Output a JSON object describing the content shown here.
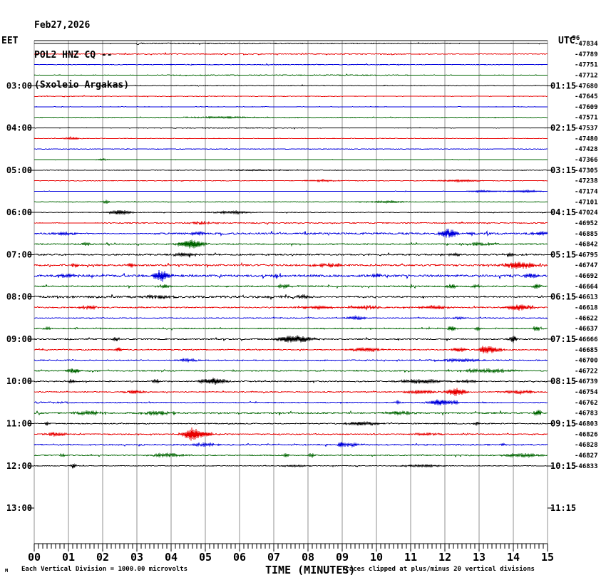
{
  "header": {
    "date": "Feb27,2026",
    "station": "POL2 HNZ CQ --",
    "location": "(Sxoleio Argakas)"
  },
  "left_axis_label": "EET",
  "right_axis_label": "UTC",
  "right_column_overlap_value": "-96",
  "footer": {
    "mark": "M",
    "scale_note": "Each Vertical Division = 1000.00 microvolts",
    "axis_title": "TIME (MINUTES)",
    "clip_note": "Traces clipped at plus/minus 20 vertical divisions"
  },
  "chart_data": {
    "type": "line",
    "subtype": "seismogram-helicorder",
    "title": "POL2 HNZ CQ --",
    "xlabel": "TIME (MINUTES)",
    "x_range": [
      0,
      15
    ],
    "x_tick_labels": [
      "00",
      "01",
      "02",
      "03",
      "04",
      "05",
      "06",
      "07",
      "08",
      "09",
      "10",
      "11",
      "12",
      "13",
      "14",
      "15"
    ],
    "minor_divisions_per_minute": 8,
    "grid": true,
    "grid_color": "#909090",
    "colors_cycle": [
      "#000000",
      "#e80000",
      "#0000dd",
      "#006600"
    ],
    "hour_rows": [
      {
        "row": 5,
        "eet": "03:00",
        "utc": "01:15"
      },
      {
        "row": 9,
        "eet": "04:00",
        "utc": "02:15"
      },
      {
        "row": 13,
        "eet": "05:00",
        "utc": "03:15"
      },
      {
        "row": 17,
        "eet": "06:00",
        "utc": "04:15"
      },
      {
        "row": 21,
        "eet": "07:00",
        "utc": "05:15"
      },
      {
        "row": 25,
        "eet": "08:00",
        "utc": "06:15"
      },
      {
        "row": 29,
        "eet": "09:00",
        "utc": "07:15"
      },
      {
        "row": 33,
        "eet": "10:00",
        "utc": "08:15"
      },
      {
        "row": 37,
        "eet": "11:00",
        "utc": "09:15"
      },
      {
        "row": 41,
        "eet": "12:00",
        "utc": "10:15"
      },
      {
        "row": 45,
        "eet": "13:00",
        "utc": "11:15"
      }
    ],
    "right_values": [
      "-47834",
      "-47789",
      "-47751",
      "-47712",
      "-47680",
      "-47645",
      "-47609",
      "-47571",
      "-47537",
      "-47480",
      "-47428",
      "-47366",
      "-47305",
      "-47238",
      "-47174",
      "-47101",
      "-47024",
      "-46952",
      "-46885",
      "-46842",
      "-46795",
      "-46747",
      "-46692",
      "-46664",
      "-46613",
      "-46618",
      "-46622",
      "-46637",
      "-46666",
      "-46685",
      "-46700",
      "-46722",
      "-46739",
      "-46754",
      "-46762",
      "-46783",
      "-46803",
      "-46826",
      "-46828",
      "-46827",
      "-46833"
    ],
    "traces": [
      {
        "row": 1,
        "p": [
          [
            0,
            3,
            0.25
          ],
          [
            3,
            7.5,
            0.8
          ],
          [
            7.5,
            12.5,
            0.45
          ],
          [
            12.5,
            15,
            0.3
          ]
        ],
        "e": []
      },
      {
        "row": 2,
        "p": [
          [
            0,
            2.5,
            0.3
          ],
          [
            2.5,
            11,
            0.55
          ],
          [
            11,
            15,
            0.3
          ]
        ],
        "e": []
      },
      {
        "row": 3,
        "p": [
          [
            0,
            4,
            0.25
          ],
          [
            4,
            11,
            0.45
          ],
          [
            11,
            15,
            0.25
          ]
        ],
        "e": []
      },
      {
        "row": 4,
        "p": [
          [
            0,
            4,
            0.3
          ],
          [
            4,
            11,
            0.5
          ],
          [
            11,
            15,
            0.3
          ]
        ],
        "e": []
      },
      {
        "row": 5,
        "p": [
          [
            0,
            4,
            0.25
          ],
          [
            4,
            9,
            0.5
          ],
          [
            9,
            15,
            0.3
          ]
        ],
        "e": []
      },
      {
        "row": 6,
        "p": [
          [
            0,
            9,
            0.35
          ],
          [
            9,
            15,
            0.25
          ]
        ],
        "e": []
      },
      {
        "row": 7,
        "p": [
          [
            0,
            15,
            0.25
          ]
        ],
        "e": []
      },
      {
        "row": 8,
        "p": [
          [
            0,
            15,
            0.3
          ]
        ],
        "e": [
          [
            5.5,
            1.2,
            0.8
          ]
        ]
      },
      {
        "row": 9,
        "p": [
          [
            0,
            4,
            0.25
          ],
          [
            4,
            8,
            0.45
          ],
          [
            8,
            15,
            0.25
          ]
        ],
        "e": []
      },
      {
        "row": 10,
        "p": [
          [
            0,
            15,
            0.25
          ]
        ],
        "e": [
          [
            1.1,
            1.5,
            0.2
          ]
        ]
      },
      {
        "row": 11,
        "p": [
          [
            0,
            15,
            0.22
          ]
        ],
        "e": []
      },
      {
        "row": 12,
        "p": [
          [
            0,
            15,
            0.25
          ]
        ],
        "e": [
          [
            2.0,
            1.2,
            0.15
          ]
        ]
      },
      {
        "row": 13,
        "p": [
          [
            0,
            15,
            0.25
          ]
        ],
        "e": [
          [
            6.5,
            0.8,
            1.0
          ]
        ]
      },
      {
        "row": 14,
        "p": [
          [
            0,
            15,
            0.28
          ]
        ],
        "e": [
          [
            8.4,
            1.2,
            0.4
          ],
          [
            12.4,
            1.5,
            0.5
          ]
        ]
      },
      {
        "row": 15,
        "p": [
          [
            0,
            15,
            0.22
          ]
        ],
        "e": [
          [
            13.1,
            1.3,
            0.35
          ],
          [
            14.3,
            1.4,
            0.4
          ]
        ]
      },
      {
        "row": 16,
        "p": [
          [
            0,
            15,
            0.25
          ]
        ],
        "e": [
          [
            2.1,
            1.8,
            0.1
          ],
          [
            10.3,
            1.3,
            0.45
          ]
        ]
      },
      {
        "row": 17,
        "p": [
          [
            0,
            15,
            0.4
          ]
        ],
        "e": [
          [
            2.5,
            3.2,
            0.25
          ],
          [
            5.8,
            1.8,
            0.5
          ]
        ]
      },
      {
        "row": 18,
        "p": [
          [
            0,
            2,
            0.35
          ],
          [
            2,
            15,
            0.7
          ]
        ],
        "e": [
          [
            4.9,
            1.5,
            0.3
          ]
        ]
      },
      {
        "row": 19,
        "p": [
          [
            0,
            1.6,
            0.9
          ],
          [
            1.6,
            3.5,
            0.45
          ],
          [
            3.5,
            15,
            1.1
          ]
        ],
        "e": [
          [
            0.9,
            1.8,
            0.3
          ],
          [
            4.8,
            2,
            0.15
          ],
          [
            12.1,
            6.5,
            0.2
          ],
          [
            14.8,
            2,
            0.2
          ]
        ]
      },
      {
        "row": 20,
        "p": [
          [
            0,
            15,
            0.75
          ]
        ],
        "e": [
          [
            1.5,
            2.2,
            0.1
          ],
          [
            4.6,
            6.5,
            0.3
          ],
          [
            13,
            1.5,
            0.4
          ]
        ]
      },
      {
        "row": 21,
        "p": [
          [
            0,
            15,
            0.95
          ]
        ],
        "e": [
          [
            4.4,
            2.8,
            0.25
          ],
          [
            12.3,
            2.2,
            0.15
          ],
          [
            13.9,
            2.2,
            0.1
          ]
        ]
      },
      {
        "row": 22,
        "p": [
          [
            0,
            15,
            1.05
          ]
        ],
        "e": [
          [
            1.15,
            2.4,
            0.08
          ],
          [
            2.85,
            2.8,
            0.08
          ],
          [
            8.6,
            1.8,
            0.4
          ],
          [
            14.15,
            5.5,
            0.35
          ]
        ]
      },
      {
        "row": 23,
        "p": [
          [
            0,
            15,
            1.3
          ]
        ],
        "e": [
          [
            1.0,
            2,
            0.3
          ],
          [
            3.7,
            7.5,
            0.18
          ],
          [
            7.1,
            3.5,
            0.1
          ],
          [
            10.0,
            3.2,
            0.1
          ],
          [
            14.55,
            3,
            0.15
          ]
        ]
      },
      {
        "row": 24,
        "p": [
          [
            0,
            15,
            0.85
          ]
        ],
        "e": [
          [
            3.8,
            2.2,
            0.15
          ],
          [
            7.3,
            2.6,
            0.15
          ],
          [
            12.2,
            3.2,
            0.1
          ],
          [
            12.9,
            2.2,
            0.1
          ],
          [
            14.7,
            2.8,
            0.1
          ]
        ]
      },
      {
        "row": 25,
        "p": [
          [
            0,
            8,
            1.2
          ],
          [
            8,
            15,
            0.75
          ]
        ],
        "e": [
          [
            3.6,
            2.2,
            0.3
          ],
          [
            7.9,
            1.8,
            0.2
          ]
        ]
      },
      {
        "row": 26,
        "p": [
          [
            0,
            15,
            0.75
          ]
        ],
        "e": [
          [
            1.6,
            2.6,
            0.2
          ],
          [
            8.3,
            2,
            0.4
          ],
          [
            9.7,
            2.2,
            0.35
          ],
          [
            11.7,
            2.2,
            0.4
          ],
          [
            14.15,
            4.5,
            0.3
          ]
        ]
      },
      {
        "row": 27,
        "p": [
          [
            0,
            15,
            0.55
          ]
        ],
        "e": [
          [
            9.4,
            2.2,
            0.25
          ],
          [
            12.4,
            1.4,
            0.15
          ]
        ]
      },
      {
        "row": 28,
        "p": [
          [
            0,
            15,
            0.65
          ]
        ],
        "e": [
          [
            0.4,
            2.2,
            0.08
          ],
          [
            12.2,
            3.6,
            0.08
          ],
          [
            12.95,
            2.2,
            0.08
          ],
          [
            14.7,
            3.2,
            0.1
          ]
        ]
      },
      {
        "row": 29,
        "p": [
          [
            0,
            15,
            0.75
          ]
        ],
        "e": [
          [
            2.4,
            3.2,
            0.08
          ],
          [
            7.6,
            5.5,
            0.4
          ],
          [
            14.0,
            5.5,
            0.08
          ]
        ]
      },
      {
        "row": 30,
        "p": [
          [
            0,
            15,
            0.65
          ]
        ],
        "e": [
          [
            2.45,
            3.2,
            0.08
          ],
          [
            9.7,
            2.2,
            0.4
          ],
          [
            12.4,
            2.8,
            0.15
          ],
          [
            13.1,
            3.6,
            0.08
          ],
          [
            13.35,
            5,
            0.22
          ]
        ]
      },
      {
        "row": 31,
        "p": [
          [
            0,
            15,
            0.55
          ]
        ],
        "e": [
          [
            4.5,
            1.8,
            0.25
          ],
          [
            12.4,
            1.8,
            0.5
          ]
        ]
      },
      {
        "row": 32,
        "p": [
          [
            0,
            15,
            0.65
          ]
        ],
        "e": [
          [
            1.15,
            3.2,
            0.15
          ],
          [
            13.3,
            2.2,
            0.6
          ]
        ]
      },
      {
        "row": 33,
        "p": [
          [
            0,
            15,
            0.65
          ]
        ],
        "e": [
          [
            1.1,
            2.2,
            0.08
          ],
          [
            3.55,
            2.2,
            0.1
          ],
          [
            5.25,
            4.5,
            0.3
          ],
          [
            11.3,
            2.8,
            0.5
          ],
          [
            12.65,
            1.8,
            0.25
          ]
        ]
      },
      {
        "row": 34,
        "p": [
          [
            0,
            15,
            0.55
          ]
        ],
        "e": [
          [
            2.9,
            2.2,
            0.25
          ],
          [
            11.3,
            2.2,
            0.4
          ],
          [
            12.35,
            5.5,
            0.22
          ],
          [
            14.15,
            2.2,
            0.4
          ]
        ]
      },
      {
        "row": 35,
        "p": [
          [
            0,
            1.1,
            1.1
          ],
          [
            1.1,
            15,
            0.55
          ]
        ],
        "e": [
          [
            10.62,
            2.8,
            0.06
          ],
          [
            11.85,
            4.5,
            0.25
          ],
          [
            12.3,
            2.2,
            0.08
          ]
        ]
      },
      {
        "row": 36,
        "p": [
          [
            0,
            15,
            0.95
          ]
        ],
        "e": [
          [
            1.6,
            2.2,
            0.35
          ],
          [
            3.6,
            2.2,
            0.4
          ],
          [
            10.6,
            2.2,
            0.4
          ],
          [
            14.72,
            4.5,
            0.08
          ]
        ]
      },
      {
        "row": 37,
        "p": [
          [
            0,
            15,
            0.55
          ]
        ],
        "e": [
          [
            0.38,
            2.2,
            0.06
          ],
          [
            9.6,
            2.4,
            0.4
          ],
          [
            12.92,
            2.8,
            0.06
          ]
        ]
      },
      {
        "row": 38,
        "p": [
          [
            0,
            15,
            0.65
          ]
        ],
        "e": [
          [
            0.65,
            2.2,
            0.25
          ],
          [
            4.62,
            9.5,
            0.22
          ],
          [
            5.05,
            2.8,
            0.15
          ],
          [
            11.5,
            1.4,
            0.4
          ]
        ]
      },
      {
        "row": 39,
        "p": [
          [
            0,
            15,
            0.75
          ]
        ],
        "e": [
          [
            4.95,
            2.2,
            0.3
          ],
          [
            8.97,
            4,
            0.06
          ],
          [
            9.25,
            2.2,
            0.25
          ],
          [
            13.7,
            1.8,
            0.08
          ]
        ]
      },
      {
        "row": 40,
        "p": [
          [
            0,
            15,
            0.65
          ]
        ],
        "e": [
          [
            0.82,
            2.2,
            0.08
          ],
          [
            3.9,
            2.2,
            0.4
          ],
          [
            7.36,
            3.2,
            0.06
          ],
          [
            8.12,
            2.2,
            0.08
          ],
          [
            14.25,
            2.2,
            0.5
          ]
        ]
      },
      {
        "row": 41,
        "p": [
          [
            0,
            15,
            0.45
          ]
        ],
        "e": [
          [
            1.15,
            3.2,
            0.06
          ],
          [
            7.6,
            1.3,
            0.3
          ],
          [
            11.3,
            1.4,
            0.5
          ]
        ]
      }
    ]
  }
}
